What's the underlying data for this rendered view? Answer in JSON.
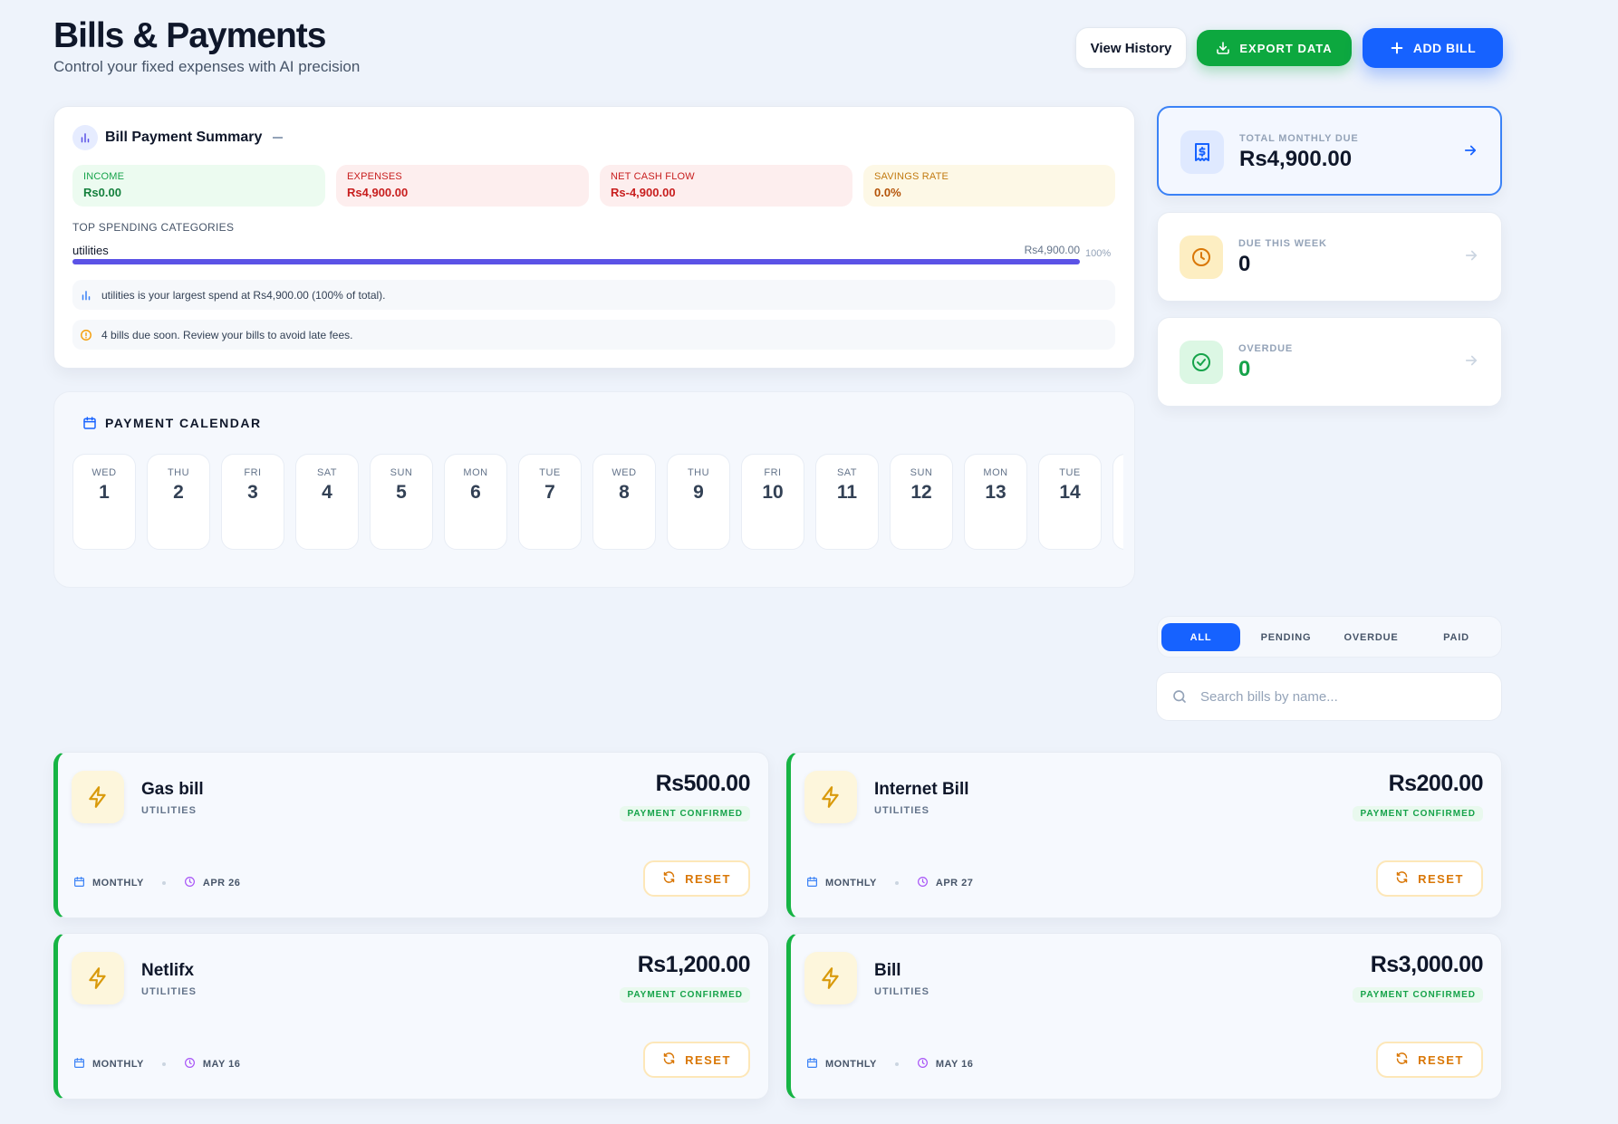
{
  "header": {
    "title": "Bills & Payments",
    "subtitle": "Control your fixed expenses with AI precision",
    "view_history": "View History",
    "export_data": "EXPORT DATA",
    "add_bill": "ADD BILL"
  },
  "summary": {
    "title": "Bill Payment Summary",
    "income_label": "INCOME",
    "income_value": "Rs0.00",
    "expenses_label": "EXPENSES",
    "expenses_value": "Rs4,900.00",
    "net_label": "NET CASH FLOW",
    "net_value": "Rs-4,900.00",
    "savings_label": "SAVINGS RATE",
    "savings_value": "0.0%",
    "top_categories_label": "TOP SPENDING CATEGORIES",
    "category": {
      "name": "utilities",
      "amount": "Rs4,900.00",
      "percent_label": "100%",
      "share": 1.0
    },
    "insight_1": "utilities is your largest spend at Rs4,900.00 (100% of total).",
    "insight_2": "4 bills due soon. Review your bills to avoid late fees."
  },
  "calendar": {
    "title": "PAYMENT CALENDAR",
    "days": [
      {
        "dow": "WED",
        "date": "1"
      },
      {
        "dow": "THU",
        "date": "2"
      },
      {
        "dow": "FRI",
        "date": "3"
      },
      {
        "dow": "SAT",
        "date": "4"
      },
      {
        "dow": "SUN",
        "date": "5"
      },
      {
        "dow": "MON",
        "date": "6"
      },
      {
        "dow": "TUE",
        "date": "7"
      },
      {
        "dow": "WED",
        "date": "8"
      },
      {
        "dow": "THU",
        "date": "9"
      },
      {
        "dow": "FRI",
        "date": "10"
      },
      {
        "dow": "SAT",
        "date": "11"
      },
      {
        "dow": "SUN",
        "date": "12"
      },
      {
        "dow": "MON",
        "date": "13"
      },
      {
        "dow": "TUE",
        "date": "14"
      },
      {
        "dow": "",
        "date": ""
      }
    ]
  },
  "stats": {
    "total_label": "TOTAL MONTHLY DUE",
    "total_value": "Rs4,900.00",
    "week_label": "DUE THIS WEEK",
    "week_value": "0",
    "overdue_label": "OVERDUE",
    "overdue_value": "0"
  },
  "filters": {
    "tabs": [
      "ALL",
      "PENDING",
      "OVERDUE",
      "PAID"
    ],
    "active": "ALL",
    "search_placeholder": "Search bills by name..."
  },
  "bills": [
    {
      "name": "Gas bill",
      "category": "UTILITIES",
      "amount": "Rs500.00",
      "status": "PAYMENT CONFIRMED",
      "frequency": "MONTHLY",
      "due": "APR 26",
      "action": "RESET"
    },
    {
      "name": "Internet Bill",
      "category": "UTILITIES",
      "amount": "Rs200.00",
      "status": "PAYMENT CONFIRMED",
      "frequency": "MONTHLY",
      "due": "APR 27",
      "action": "RESET"
    },
    {
      "name": "Netlifx",
      "category": "UTILITIES",
      "amount": "Rs1,200.00",
      "status": "PAYMENT CONFIRMED",
      "frequency": "MONTHLY",
      "due": "MAY 16",
      "action": "RESET"
    },
    {
      "name": "Bill",
      "category": "UTILITIES",
      "amount": "Rs3,000.00",
      "status": "PAYMENT CONFIRMED",
      "frequency": "MONTHLY",
      "due": "MAY 16",
      "action": "RESET"
    }
  ],
  "colors": {
    "primary": "#1662ff",
    "success": "#0da83f",
    "warning": "#d97706",
    "danger": "#c81e1e",
    "category_bar": "#5b52e6"
  }
}
